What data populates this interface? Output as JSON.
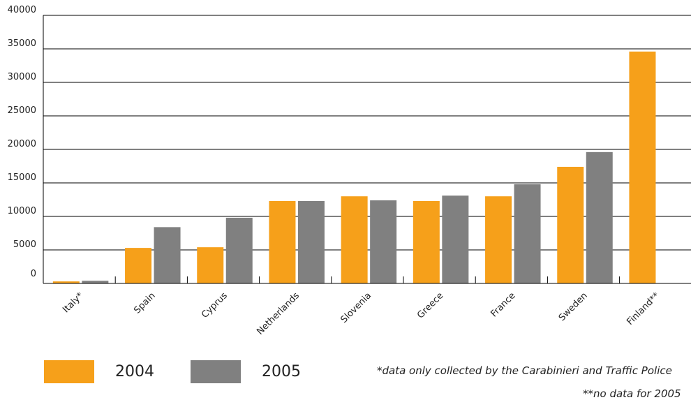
{
  "chart_data": {
    "type": "bar",
    "categories": [
      "Italy*",
      "Spain",
      "Cyprus",
      "Netherlands",
      "Slovenia",
      "Greece",
      "France",
      "Sweden",
      "Finland**"
    ],
    "series": [
      {
        "name": "2004",
        "color": "#f6a01a",
        "values": [
          300,
          5300,
          5400,
          12300,
          13000,
          12300,
          13000,
          17400,
          34600
        ]
      },
      {
        "name": "2005",
        "color": "#808080",
        "values": [
          400,
          8400,
          9800,
          12300,
          12400,
          13100,
          14800,
          19600,
          null
        ]
      }
    ],
    "yticks": [
      0,
      5000,
      10000,
      15000,
      20000,
      25000,
      30000,
      35000,
      40000
    ],
    "ylim": [
      0,
      40000
    ],
    "grid": true,
    "legend_position": "bottom-left",
    "notes": [
      "*data only collected by the Carabinieri and Traffic Police",
      "**no data for 2005"
    ]
  }
}
